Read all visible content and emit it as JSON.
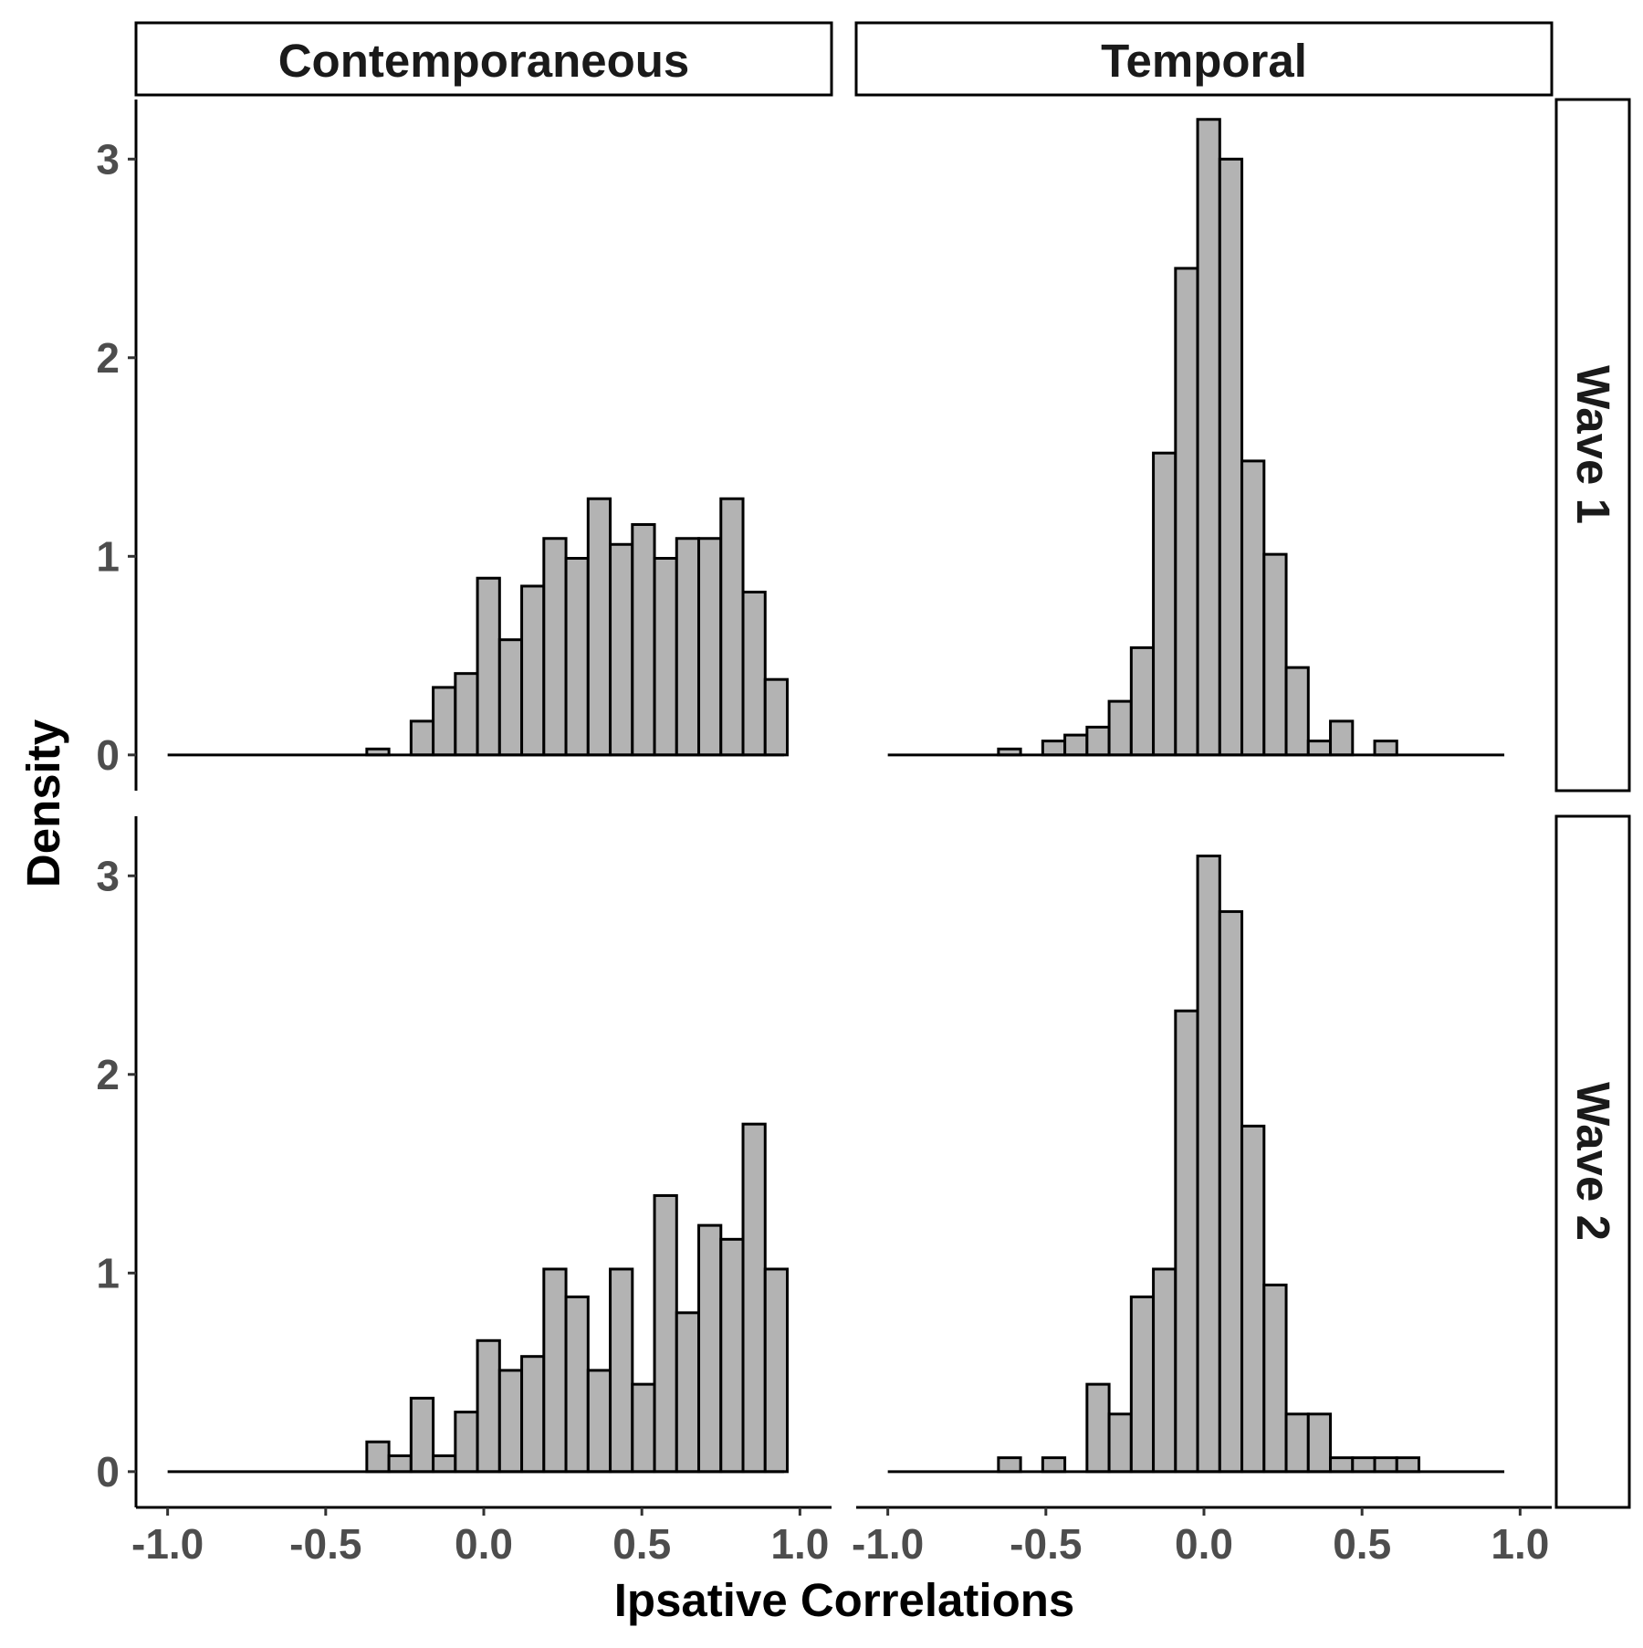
{
  "chart_data": {
    "type": "bar",
    "subtype": "faceted-histogram",
    "xlabel": "Ipsative Correlations",
    "ylabel": "Density",
    "columns": [
      "Contemporaneous",
      "Temporal"
    ],
    "rows": [
      "Wave 1",
      "Wave 2"
    ],
    "xlim": [
      -1.1,
      1.1
    ],
    "ylim": [
      0,
      3.3
    ],
    "x_ticks": [
      -1.0,
      -0.5,
      0.0,
      0.5,
      1.0
    ],
    "x_tick_labels": [
      "-1.0",
      "-0.5",
      "0.0",
      "0.5",
      "1.0"
    ],
    "y_ticks": [
      0,
      1,
      2,
      3
    ],
    "y_tick_labels": [
      "0",
      "1",
      "2",
      "3"
    ],
    "bin_width": 0.07,
    "bin_start": -1.0,
    "bar_fill": "#b3b3b3",
    "bar_stroke": "#000000",
    "grid": false,
    "panels": [
      {
        "column": "Contemporaneous",
        "row": "Wave 1",
        "values": [
          0,
          0,
          0,
          0,
          0,
          0,
          0,
          0,
          0,
          0.03,
          0,
          0.17,
          0.34,
          0.41,
          0.89,
          0.58,
          0.85,
          1.09,
          0.99,
          1.29,
          1.06,
          1.16,
          0.99,
          1.09,
          1.09,
          1.29,
          0.82,
          0.38,
          0,
          0,
          0,
          0,
          0,
          0,
          0,
          0
        ]
      },
      {
        "column": "Temporal",
        "row": "Wave 1",
        "values": [
          0,
          0,
          0,
          0,
          0,
          0.03,
          0,
          0.07,
          0.1,
          0.14,
          0.27,
          0.54,
          1.52,
          2.45,
          3.2,
          3,
          1.48,
          1.01,
          0.44,
          0.07,
          0.17,
          0,
          0.07,
          0,
          0,
          0,
          0,
          0,
          0,
          0,
          0,
          0,
          0,
          0,
          0,
          0
        ]
      },
      {
        "column": "Contemporaneous",
        "row": "Wave 2",
        "values": [
          0,
          0,
          0,
          0,
          0,
          0,
          0,
          0,
          0,
          0.15,
          0.08,
          0.37,
          0.08,
          0.3,
          0.66,
          0.51,
          0.58,
          1.02,
          0.88,
          0.51,
          1.02,
          0.44,
          1.39,
          0.8,
          1.24,
          1.17,
          1.75,
          1.02,
          0,
          0,
          0,
          0,
          0,
          0,
          0,
          0
        ]
      },
      {
        "column": "Temporal",
        "row": "Wave 2",
        "values": [
          0,
          0,
          0,
          0,
          0,
          0.07,
          0,
          0.07,
          0,
          0.44,
          0.29,
          0.88,
          1.02,
          2.32,
          3.1,
          2.82,
          1.74,
          0.94,
          0.29,
          0.29,
          0.07,
          0.07,
          0.07,
          0.07,
          0,
          0,
          0,
          0,
          0,
          0,
          0,
          0,
          0,
          0,
          0,
          0
        ]
      }
    ]
  }
}
